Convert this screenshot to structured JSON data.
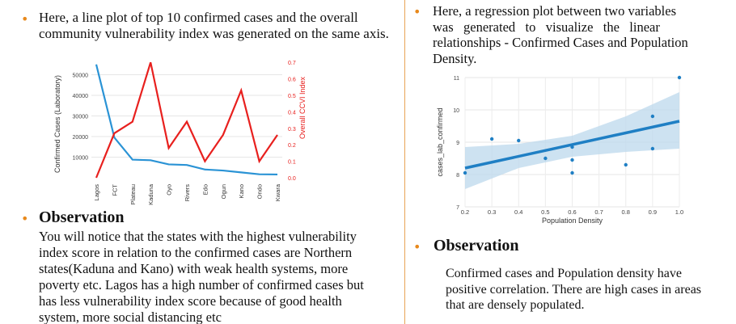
{
  "left": {
    "intro": "Here, a line plot of top 10 confirmed cases and the overall community vulnerability index was generated on the same axis.",
    "observation_heading": "Observation",
    "observation_lines": [
      "You will notice that the states with the highest vulnerability",
      "index score in relation to the confirmed cases are Northern",
      "states(Kaduna and Kano) with weak health systems, more",
      "poverty etc. Lagos has a high number of confirmed cases but",
      "has less vulnerability index score because of good health",
      "system, more social distancing etc"
    ]
  },
  "right": {
    "intro_lines": [
      "Here, a regression plot between two variables",
      "was   generated   to   visualize   the   linear",
      "relationships - Confirmed Cases and Population",
      "Density."
    ],
    "observation_heading": "Observation",
    "observation_lines": [
      "Confirmed cases and Population density have",
      "positive correlation. There are high cases in areas",
      "that are densely populated."
    ]
  },
  "colors": {
    "bullet": "#e8891c",
    "cases_line": "#2a93d5",
    "ccvi_line": "#e8201e",
    "reg": "#1f7fc4",
    "ci": "#bcd8ec"
  },
  "chart_data": [
    {
      "type": "line",
      "categories": [
        "Lagos",
        "FCT",
        "Plateau",
        "Kaduna",
        "Oyo",
        "Rivers",
        "Edo",
        "Ogun",
        "Kano",
        "Ondo",
        "Kwara"
      ],
      "ylabel": "Confirmed Cases (Laboratory)",
      "y2label": "Overall CCVI Index",
      "yticks": [
        10000,
        20000,
        30000,
        40000,
        50000
      ],
      "ylim": [
        0,
        60000
      ],
      "y2ticks": [
        0.0,
        0.1,
        0.2,
        0.3,
        0.4,
        0.5,
        0.6,
        0.7
      ],
      "y2lim": [
        0,
        0.75
      ],
      "series": [
        {
          "name": "Confirmed Cases (Laboratory)",
          "axis": "left",
          "values": [
            55000,
            19500,
            8800,
            8500,
            6500,
            6200,
            4000,
            3500,
            2600,
            1700,
            1600
          ]
        },
        {
          "name": "Overall CCVI Index",
          "axis": "right",
          "values": [
            0.0,
            0.27,
            0.34,
            0.7,
            0.18,
            0.34,
            0.1,
            0.26,
            0.53,
            0.1,
            0.26
          ]
        }
      ]
    },
    {
      "type": "scatter",
      "xlabel": "Population Density",
      "ylabel": "cases_lab_confirmed",
      "xlim": [
        0.2,
        1.0
      ],
      "ylim": [
        7,
        11
      ],
      "xticks": [
        "0.2",
        "0.3",
        "0.4",
        "0.5",
        "0.6",
        "0.7",
        "0.8",
        "0.9",
        "1.0"
      ],
      "yticks": [
        "7",
        "8",
        "9",
        "10",
        "11"
      ],
      "points": [
        [
          0.2,
          8.05
        ],
        [
          0.3,
          9.1
        ],
        [
          0.4,
          9.05
        ],
        [
          0.5,
          8.5
        ],
        [
          0.6,
          8.85
        ],
        [
          0.6,
          8.45
        ],
        [
          0.6,
          8.05
        ],
        [
          0.8,
          8.3
        ],
        [
          0.9,
          9.8
        ],
        [
          0.9,
          8.8
        ],
        [
          1.0,
          11.0
        ]
      ],
      "regression": {
        "x": [
          0.2,
          1.0
        ],
        "y": [
          8.2,
          9.65
        ]
      }
    }
  ]
}
